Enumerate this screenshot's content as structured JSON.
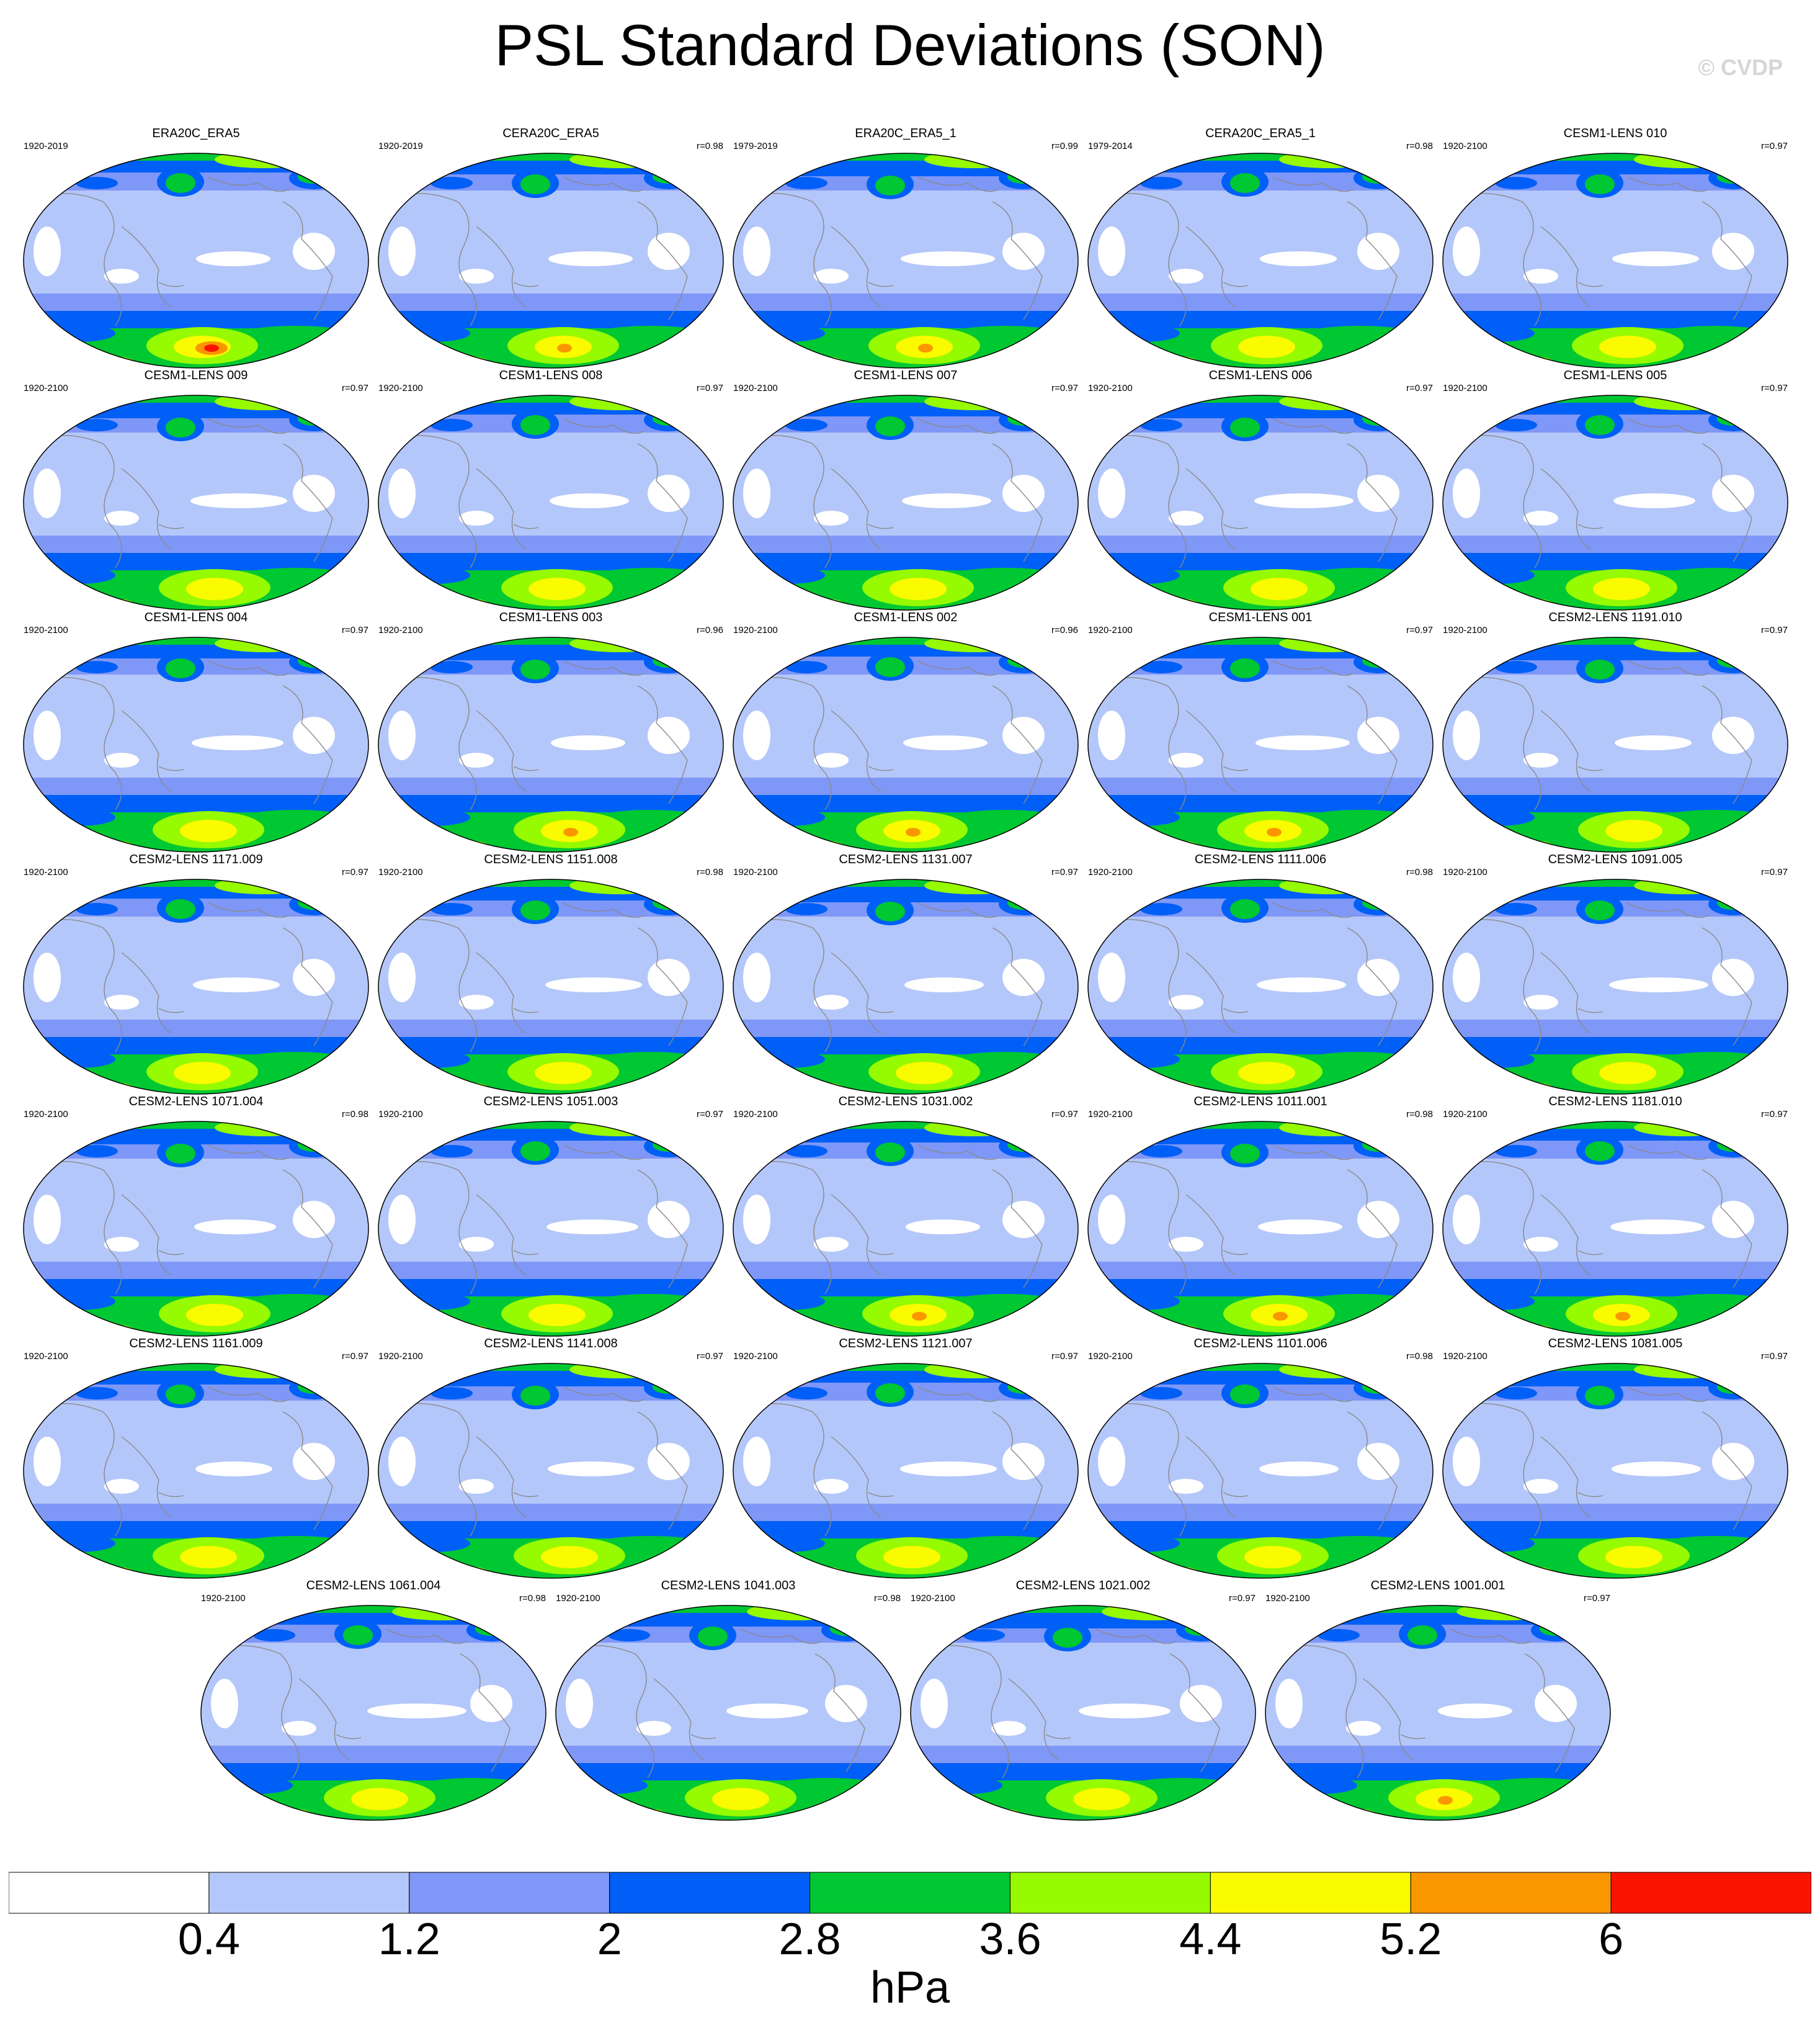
{
  "title": "PSL Standard Deviations (SON)",
  "watermark": "© CVDP",
  "colors": [
    "#ffffff",
    "#b4c7fa",
    "#7f97f7",
    "#005ff7",
    "#00c832",
    "#96fa00",
    "#fafa00",
    "#fa9600",
    "#fa1400"
  ],
  "colorbar": {
    "tick_labels": [
      "0.4",
      "1.2",
      "2",
      "2.8",
      "3.6",
      "4.4",
      "5.2",
      "6"
    ],
    "units": "hPa"
  },
  "panels": [
    {
      "title": "ERA20C_ERA5",
      "period": "1920-2019",
      "corr": ""
    },
    {
      "title": "CERA20C_ERA5",
      "period": "1920-2019",
      "corr": "r=0.98"
    },
    {
      "title": "ERA20C_ERA5_1",
      "period": "1979-2019",
      "corr": "r=0.99"
    },
    {
      "title": "CERA20C_ERA5_1",
      "period": "1979-2014",
      "corr": "r=0.98"
    },
    {
      "title": "CESM1-LENS 010",
      "period": "1920-2100",
      "corr": "r=0.97"
    },
    {
      "title": "CESM1-LENS 009",
      "period": "1920-2100",
      "corr": "r=0.97"
    },
    {
      "title": "CESM1-LENS 008",
      "period": "1920-2100",
      "corr": "r=0.97"
    },
    {
      "title": "CESM1-LENS 007",
      "period": "1920-2100",
      "corr": "r=0.97"
    },
    {
      "title": "CESM1-LENS 006",
      "period": "1920-2100",
      "corr": "r=0.97"
    },
    {
      "title": "CESM1-LENS 005",
      "period": "1920-2100",
      "corr": "r=0.97"
    },
    {
      "title": "CESM1-LENS 004",
      "period": "1920-2100",
      "corr": "r=0.97"
    },
    {
      "title": "CESM1-LENS 003",
      "period": "1920-2100",
      "corr": "r=0.96"
    },
    {
      "title": "CESM1-LENS 002",
      "period": "1920-2100",
      "corr": "r=0.96"
    },
    {
      "title": "CESM1-LENS 001",
      "period": "1920-2100",
      "corr": "r=0.97"
    },
    {
      "title": "CESM2-LENS 1191.010",
      "period": "1920-2100",
      "corr": "r=0.97"
    },
    {
      "title": "CESM2-LENS 1171.009",
      "period": "1920-2100",
      "corr": "r=0.97"
    },
    {
      "title": "CESM2-LENS 1151.008",
      "period": "1920-2100",
      "corr": "r=0.98"
    },
    {
      "title": "CESM2-LENS 1131.007",
      "period": "1920-2100",
      "corr": "r=0.97"
    },
    {
      "title": "CESM2-LENS 1111.006",
      "period": "1920-2100",
      "corr": "r=0.98"
    },
    {
      "title": "CESM2-LENS 1091.005",
      "period": "1920-2100",
      "corr": "r=0.97"
    },
    {
      "title": "CESM2-LENS 1071.004",
      "period": "1920-2100",
      "corr": "r=0.98"
    },
    {
      "title": "CESM2-LENS 1051.003",
      "period": "1920-2100",
      "corr": "r=0.97"
    },
    {
      "title": "CESM2-LENS 1031.002",
      "period": "1920-2100",
      "corr": "r=0.97"
    },
    {
      "title": "CESM2-LENS 1011.001",
      "period": "1920-2100",
      "corr": "r=0.98"
    },
    {
      "title": "CESM2-LENS 1181.010",
      "period": "1920-2100",
      "corr": "r=0.97"
    },
    {
      "title": "CESM2-LENS 1161.009",
      "period": "1920-2100",
      "corr": "r=0.97"
    },
    {
      "title": "CESM2-LENS 1141.008",
      "period": "1920-2100",
      "corr": "r=0.97"
    },
    {
      "title": "CESM2-LENS 1121.007",
      "period": "1920-2100",
      "corr": "r=0.97"
    },
    {
      "title": "CESM2-LENS 1101.006",
      "period": "1920-2100",
      "corr": "r=0.98"
    },
    {
      "title": "CESM2-LENS 1081.005",
      "period": "1920-2100",
      "corr": "r=0.97"
    },
    {
      "title": "CESM2-LENS 1061.004",
      "period": "1920-2100",
      "corr": "r=0.98"
    },
    {
      "title": "CESM2-LENS 1041.003",
      "period": "1920-2100",
      "corr": "r=0.98"
    },
    {
      "title": "CESM2-LENS 1021.002",
      "period": "1920-2100",
      "corr": "r=0.97"
    },
    {
      "title": "CESM2-LENS 1001.001",
      "period": "1920-2100",
      "corr": "r=0.97"
    }
  ]
}
